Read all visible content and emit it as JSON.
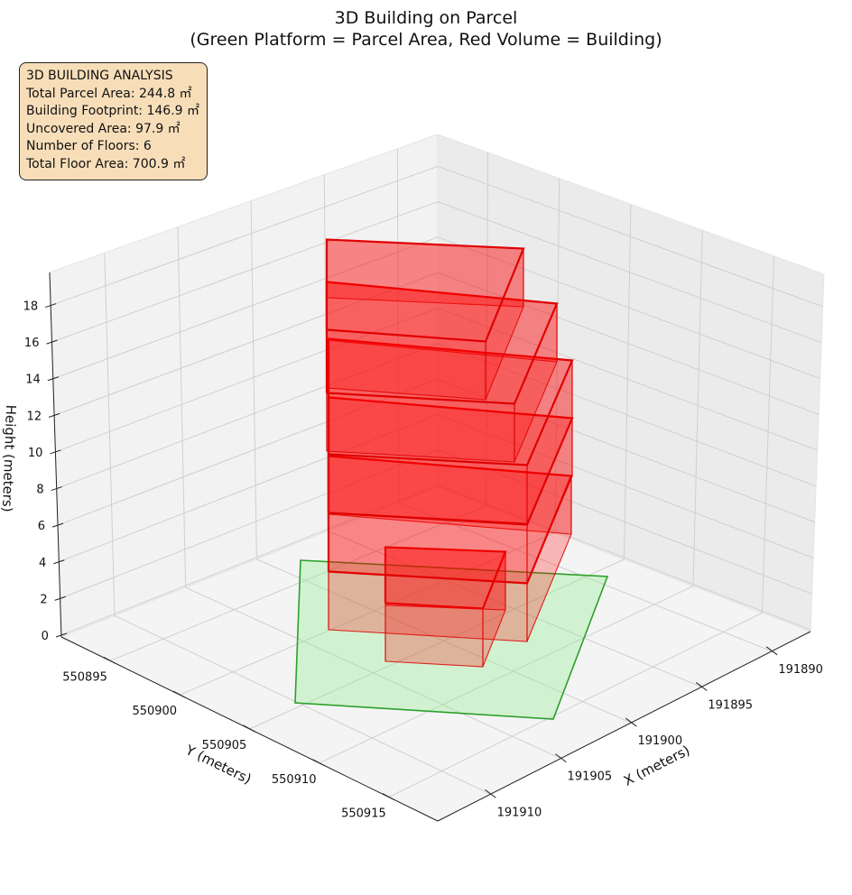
{
  "chart_data": {
    "type": "3d-bar",
    "title": "3D Building on Parcel",
    "subtitle": "(Green Platform = Parcel Area, Red Volume = Building)",
    "xlabel": "X (meters)",
    "ylabel": "Y (meters)",
    "zlabel": "Height (meters)",
    "x_ticks": [
      "191890",
      "191895",
      "191900",
      "191905",
      "191910"
    ],
    "y_ticks": [
      "550895",
      "550900",
      "550905",
      "550910",
      "550915"
    ],
    "z_ticks": [
      "0",
      "2",
      "4",
      "6",
      "8",
      "10",
      "12",
      "14",
      "16",
      "18"
    ],
    "parcel": {
      "color": "#2ca02c",
      "fill": "#90ee90"
    },
    "building": {
      "color": "#e00000",
      "fill": "#ff0000"
    },
    "floors": [
      {
        "floor": 1,
        "z0": 0,
        "z1": 3
      },
      {
        "floor": 2,
        "z0": 3,
        "z1": 6
      },
      {
        "floor": 3,
        "z0": 6,
        "z1": 9
      },
      {
        "floor": 4,
        "z0": 9,
        "z1": 12
      },
      {
        "floor": 5,
        "z0": 12,
        "z1": 15
      },
      {
        "floor": 6,
        "z0": 15,
        "z1": 18
      }
    ],
    "grid": true
  },
  "analysis": {
    "heading": "3D BUILDING ANALYSIS",
    "lines": [
      "Total Parcel Area: 244.8 ㎡",
      "Building Footprint: 146.9 ㎡",
      "Uncovered Area: 97.9 ㎡",
      "Number of Floors: 6",
      "Total Floor Area: 700.9 ㎡"
    ]
  }
}
